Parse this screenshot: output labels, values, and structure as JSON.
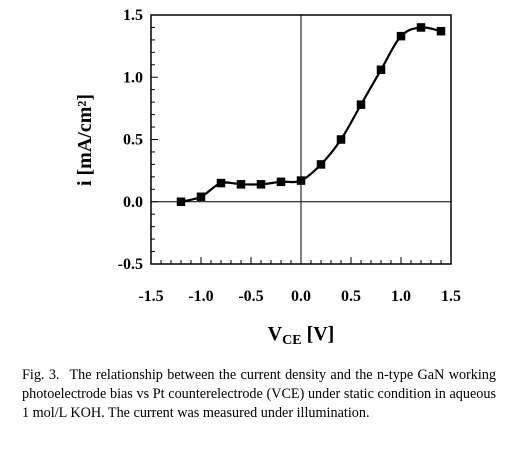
{
  "chart_data": {
    "type": "line",
    "xlabel_main": "V",
    "xlabel_sub": "CE",
    "xlabel_unit": " [V]",
    "ylabel": "i [mA/cm²]",
    "xlim": [
      -1.5,
      1.5
    ],
    "ylim": [
      -0.5,
      1.5
    ],
    "xticks": [
      -1.5,
      -1.0,
      -0.5,
      0.0,
      0.5,
      1.0,
      1.5
    ],
    "xtick_labels": [
      "-1.5",
      "-1.0",
      "-0.5",
      "0.0",
      "0.5",
      "1.0",
      "1.5"
    ],
    "yticks": [
      -0.5,
      0.0,
      0.5,
      1.0,
      1.5
    ],
    "ytick_labels": [
      "-0.5",
      "0.0",
      "0.5",
      "1.0",
      "1.5"
    ],
    "grid": false,
    "marker": "square",
    "series": [
      {
        "x": [
          -1.2,
          -1.0,
          -0.8,
          -0.6,
          -0.4,
          -0.2,
          0.0,
          0.2,
          0.4,
          0.6,
          0.8,
          1.0,
          1.2,
          1.4
        ],
        "y": [
          0.0,
          0.04,
          0.15,
          0.14,
          0.14,
          0.16,
          0.17,
          0.3,
          0.5,
          0.78,
          1.06,
          1.33,
          1.4,
          1.37
        ]
      }
    ]
  },
  "caption": {
    "label": "Fig. 3.",
    "text": "The relationship between the current density and the n-type GaN working photoelectrode bias vs Pt counterelectrode (VCE) under static condition in aqueous 1 mol/L KOH. The current was measured under illumination."
  }
}
